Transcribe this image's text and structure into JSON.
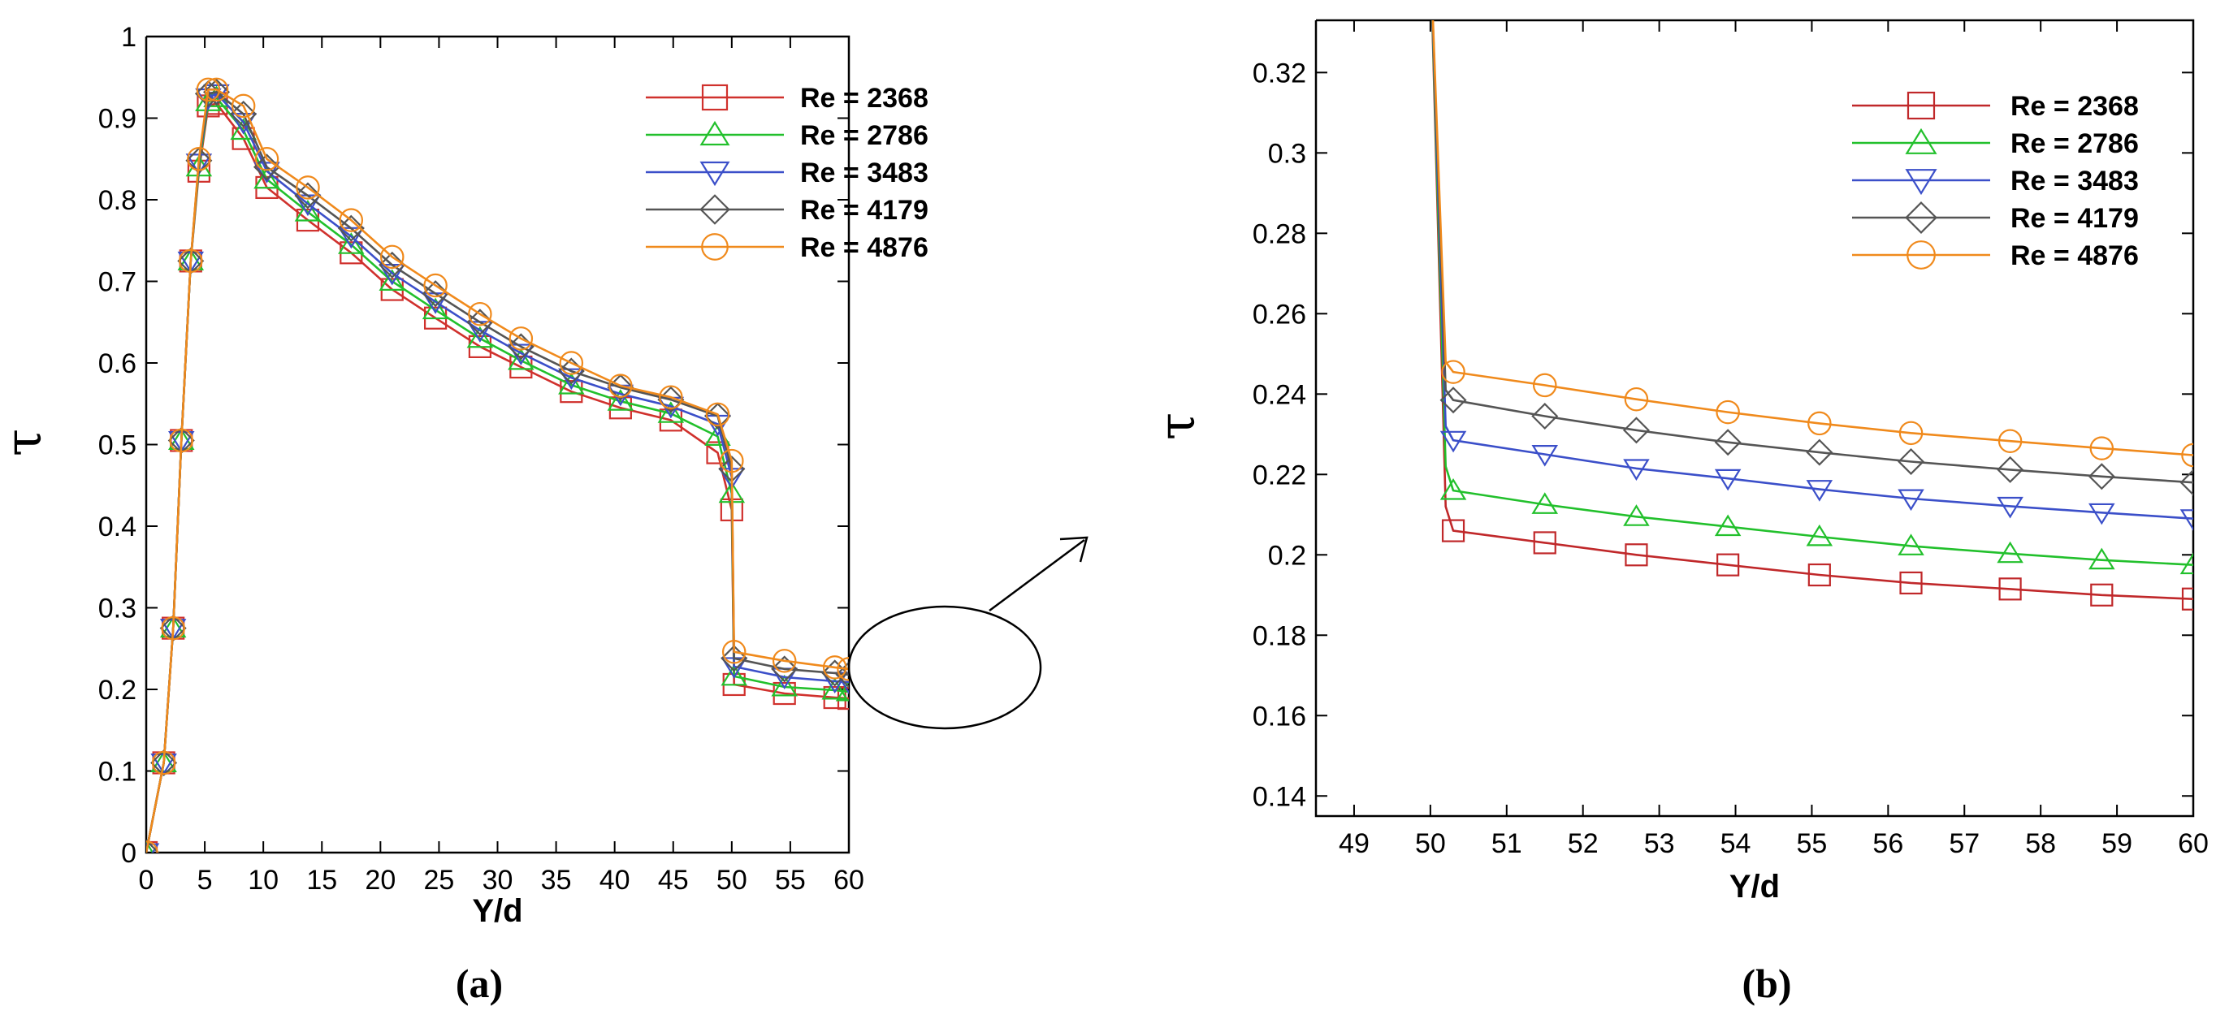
{
  "chart_data": [
    {
      "type": "line",
      "panel": "a",
      "caption": "(a)",
      "xlabel": "Y/d",
      "ylabel": "τ",
      "xlim": [
        0,
        60
      ],
      "ylim": [
        0,
        1
      ],
      "xticks": [
        "0",
        "5",
        "10",
        "15",
        "20",
        "25",
        "30",
        "35",
        "40",
        "45",
        "50",
        "55",
        "60"
      ],
      "yticks": [
        "0",
        "0.1",
        "0.2",
        "0.3",
        "0.4",
        "0.5",
        "0.6",
        "0.7",
        "0.8",
        "0.9",
        "1"
      ],
      "legend_position": "top-right",
      "annotation": "ellipse around the 50-60 region with arrow pointing to panel (b)",
      "series": [
        {
          "name": "Re = 2368",
          "color": "#d0312d",
          "marker": "square",
          "x": [
            0,
            1.5,
            2.3,
            3,
            3.8,
            4.5,
            5.3,
            6,
            8.3,
            10.3,
            13.8,
            17.5,
            21,
            24.7,
            28.5,
            32,
            36.3,
            40.5,
            44.8,
            48.8,
            50,
            50.2,
            54.5,
            58.8,
            60
          ],
          "y": [
            0,
            0.11,
            0.275,
            0.505,
            0.725,
            0.835,
            0.915,
            0.918,
            0.875,
            0.815,
            0.775,
            0.735,
            0.69,
            0.655,
            0.62,
            0.595,
            0.565,
            0.545,
            0.53,
            0.49,
            0.42,
            0.206,
            0.195,
            0.19,
            0.189
          ]
        },
        {
          "name": "Re = 2786",
          "color": "#22c02c",
          "marker": "triangle-up",
          "x": [
            0,
            1.5,
            2.3,
            3,
            3.8,
            4.5,
            5.3,
            6,
            8.3,
            10.3,
            13.8,
            17.5,
            21,
            24.7,
            28.5,
            32,
            36.3,
            40.5,
            44.8,
            48.8,
            50,
            50.2,
            54.5,
            58.8,
            60
          ],
          "y": [
            0,
            0.11,
            0.275,
            0.505,
            0.725,
            0.84,
            0.92,
            0.925,
            0.885,
            0.825,
            0.785,
            0.745,
            0.7,
            0.665,
            0.63,
            0.603,
            0.573,
            0.553,
            0.538,
            0.51,
            0.44,
            0.216,
            0.203,
            0.199,
            0.197
          ]
        },
        {
          "name": "Re = 3483",
          "color": "#3b4fc9",
          "marker": "triangle-down",
          "x": [
            0,
            1.5,
            2.3,
            3,
            3.8,
            4.5,
            5.3,
            6,
            8.3,
            10.3,
            13.8,
            17.5,
            21,
            24.7,
            28.5,
            32,
            36.3,
            40.5,
            44.8,
            48.8,
            50,
            50.2,
            54.5,
            58.8,
            60
          ],
          "y": [
            0,
            0.11,
            0.275,
            0.505,
            0.725,
            0.845,
            0.925,
            0.93,
            0.895,
            0.835,
            0.795,
            0.755,
            0.71,
            0.675,
            0.64,
            0.612,
            0.582,
            0.562,
            0.547,
            0.525,
            0.46,
            0.228,
            0.215,
            0.21,
            0.209
          ]
        },
        {
          "name": "Re = 4179",
          "color": "#555555",
          "marker": "diamond",
          "x": [
            0,
            1.5,
            2.3,
            3,
            3.8,
            4.5,
            5.3,
            6,
            8.3,
            10.3,
            13.8,
            17.5,
            21,
            24.7,
            28.5,
            32,
            36.3,
            40.5,
            44.8,
            48.8,
            50,
            50.2,
            54.5,
            58.8,
            60
          ],
          "y": [
            0,
            0.11,
            0.275,
            0.505,
            0.725,
            0.848,
            0.93,
            0.932,
            0.905,
            0.84,
            0.805,
            0.765,
            0.72,
            0.685,
            0.65,
            0.62,
            0.59,
            0.57,
            0.555,
            0.535,
            0.47,
            0.238,
            0.225,
            0.22,
            0.218
          ]
        },
        {
          "name": "Re = 4876",
          "color": "#f08a1c",
          "marker": "circle",
          "x": [
            0,
            1.5,
            2.3,
            3,
            3.8,
            4.5,
            5.3,
            6,
            8.3,
            10.3,
            13.8,
            17.5,
            21,
            24.7,
            28.5,
            32,
            36.3,
            40.5,
            44.8,
            48.8,
            50,
            50.2,
            54.5,
            58.8,
            60
          ],
          "y": [
            0,
            0.11,
            0.275,
            0.505,
            0.725,
            0.85,
            0.935,
            0.935,
            0.915,
            0.85,
            0.815,
            0.775,
            0.73,
            0.695,
            0.66,
            0.63,
            0.6,
            0.572,
            0.558,
            0.537,
            0.48,
            0.246,
            0.235,
            0.227,
            0.225
          ]
        }
      ]
    },
    {
      "type": "line",
      "panel": "b",
      "caption": "(b)",
      "xlabel": "Y/d",
      "ylabel": "τ",
      "xlim": [
        48.5,
        60
      ],
      "ylim": [
        0.135,
        0.333
      ],
      "xticks": [
        "49",
        "50",
        "51",
        "52",
        "53",
        "54",
        "55",
        "56",
        "57",
        "58",
        "59",
        "60"
      ],
      "yticks": [
        "0.14",
        "0.16",
        "0.18",
        "0.2",
        "0.22",
        "0.24",
        "0.26",
        "0.28",
        "0.3",
        "0.32"
      ],
      "legend_position": "top-right",
      "series": [
        {
          "name": "Re = 2368",
          "color": "#c0282a",
          "marker": "square",
          "x": [
            50,
            50.2,
            50.3,
            51.5,
            52.7,
            53.9,
            55.1,
            56.3,
            57.6,
            58.8,
            60
          ],
          "y": [
            0.35,
            0.212,
            0.206,
            0.203,
            0.2,
            0.1975,
            0.195,
            0.193,
            0.1915,
            0.19,
            0.189
          ]
        },
        {
          "name": "Re = 2786",
          "color": "#22c02c",
          "marker": "triangle-up",
          "x": [
            50,
            50.2,
            50.3,
            51.5,
            52.7,
            53.9,
            55.1,
            56.3,
            57.6,
            58.8,
            60
          ],
          "y": [
            0.35,
            0.222,
            0.216,
            0.2125,
            0.2095,
            0.207,
            0.2045,
            0.2022,
            0.2003,
            0.1987,
            0.1975
          ]
        },
        {
          "name": "Re = 3483",
          "color": "#3b4fc9",
          "marker": "triangle-down",
          "x": [
            50,
            50.2,
            50.3,
            51.5,
            52.7,
            53.9,
            55.1,
            56.3,
            57.6,
            58.8,
            60
          ],
          "y": [
            0.35,
            0.232,
            0.2285,
            0.225,
            0.2215,
            0.219,
            0.2163,
            0.214,
            0.2121,
            0.2105,
            0.209
          ]
        },
        {
          "name": "Re = 4179",
          "color": "#555555",
          "marker": "diamond",
          "x": [
            50,
            50.2,
            50.3,
            51.5,
            52.7,
            53.9,
            55.1,
            56.3,
            57.6,
            58.8,
            60
          ],
          "y": [
            0.35,
            0.241,
            0.2385,
            0.2345,
            0.231,
            0.228,
            0.2255,
            0.2232,
            0.2212,
            0.2195,
            0.218
          ]
        },
        {
          "name": "Re = 4876",
          "color": "#f08a1c",
          "marker": "circle",
          "x": [
            50,
            50.2,
            50.3,
            51.5,
            52.7,
            53.9,
            55.1,
            56.3,
            57.6,
            58.8,
            60
          ],
          "y": [
            0.35,
            0.248,
            0.2455,
            0.2422,
            0.2387,
            0.2355,
            0.2327,
            0.2303,
            0.2283,
            0.2265,
            0.2248
          ]
        }
      ]
    }
  ]
}
